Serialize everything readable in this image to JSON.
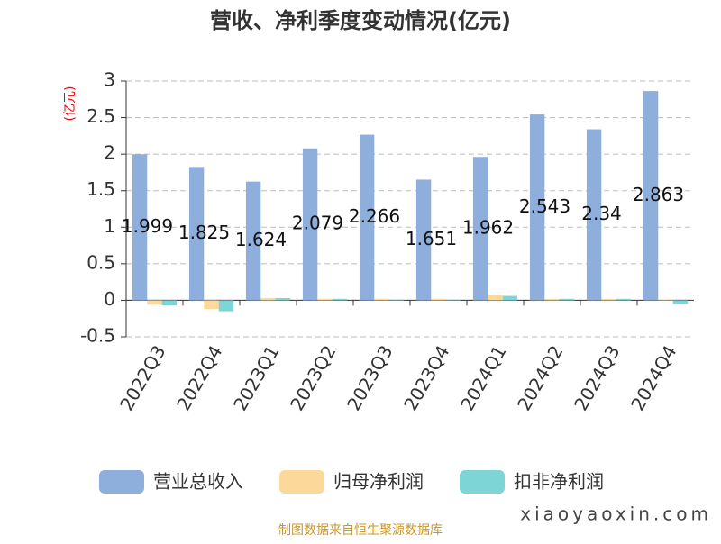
{
  "chart_data": {
    "type": "bar",
    "title": "营收、净利季度变动情况(亿元)",
    "y_unit": "(亿元)",
    "categories": [
      "2022Q3",
      "2022Q4",
      "2023Q1",
      "2023Q2",
      "2023Q3",
      "2023Q4",
      "2024Q1",
      "2024Q2",
      "2024Q3",
      "2024Q4"
    ],
    "series": [
      {
        "name": "营业总收入",
        "color": "#8eaedc",
        "values": [
          1.999,
          1.825,
          1.624,
          2.079,
          2.266,
          1.651,
          1.962,
          2.543,
          2.34,
          2.863
        ]
      },
      {
        "name": "归母净利润",
        "color": "#fcd89a",
        "values": [
          -0.06,
          -0.12,
          0.03,
          0.02,
          0.02,
          0.02,
          0.07,
          0.02,
          0.02,
          0.01
        ]
      },
      {
        "name": "扣非净利润",
        "color": "#7dd5d6",
        "values": [
          -0.07,
          -0.15,
          0.03,
          0.02,
          0.01,
          0.01,
          0.06,
          0.02,
          0.02,
          -0.05
        ]
      }
    ],
    "ylim": [
      -0.5,
      3
    ],
    "yticks": [
      -0.5,
      0,
      0.5,
      1,
      1.5,
      2,
      2.5,
      3
    ],
    "grid": true,
    "source": "制图数据来自恒生聚源数据库",
    "watermark": "xiaoyaoxin.com"
  }
}
